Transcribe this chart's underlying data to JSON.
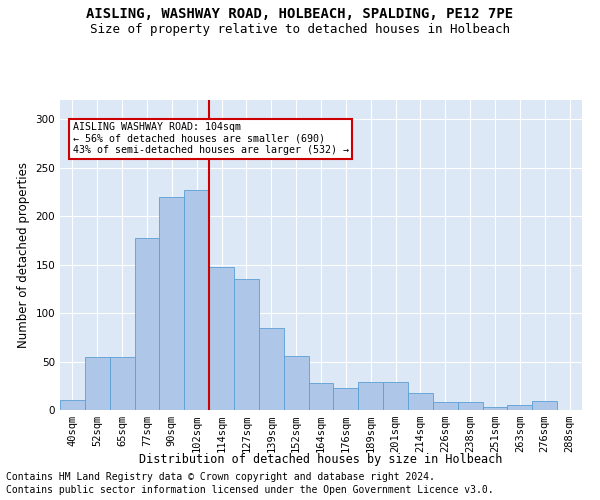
{
  "title": "AISLING, WASHWAY ROAD, HOLBEACH, SPALDING, PE12 7PE",
  "subtitle": "Size of property relative to detached houses in Holbeach",
  "xlabel": "Distribution of detached houses by size in Holbeach",
  "ylabel": "Number of detached properties",
  "categories": [
    "40sqm",
    "52sqm",
    "65sqm",
    "77sqm",
    "90sqm",
    "102sqm",
    "114sqm",
    "127sqm",
    "139sqm",
    "152sqm",
    "164sqm",
    "176sqm",
    "189sqm",
    "201sqm",
    "214sqm",
    "226sqm",
    "238sqm",
    "251sqm",
    "263sqm",
    "276sqm",
    "288sqm"
  ],
  "values": [
    10,
    55,
    55,
    178,
    220,
    227,
    148,
    135,
    85,
    56,
    28,
    23,
    29,
    29,
    18,
    8,
    8,
    3,
    5,
    9,
    0
  ],
  "bar_color": "#aec6e8",
  "bar_edge_color": "#5a9fd4",
  "vline_x_index": 5,
  "vline_color": "#cc0000",
  "annotation_text": "AISLING WASHWAY ROAD: 104sqm\n← 56% of detached houses are smaller (690)\n43% of semi-detached houses are larger (532) →",
  "annotation_box_color": "#ffffff",
  "annotation_box_edge": "#cc0000",
  "footer_line1": "Contains HM Land Registry data © Crown copyright and database right 2024.",
  "footer_line2": "Contains public sector information licensed under the Open Government Licence v3.0.",
  "ylim": [
    0,
    320
  ],
  "yticks": [
    0,
    50,
    100,
    150,
    200,
    250,
    300
  ],
  "background_color": "#dce8f5",
  "grid_color": "#ffffff",
  "title_fontsize": 10,
  "subtitle_fontsize": 9,
  "label_fontsize": 8.5,
  "tick_fontsize": 7.5,
  "footer_fontsize": 7
}
